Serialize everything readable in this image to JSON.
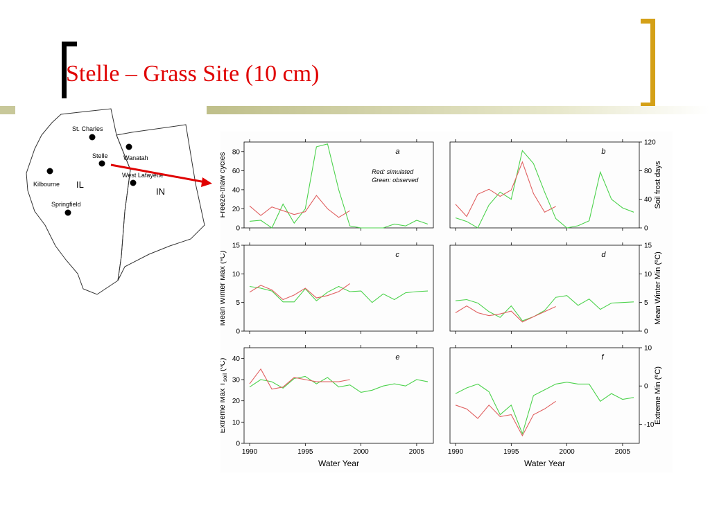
{
  "slide": {
    "title": "Stelle – Grass Site (10 cm)",
    "accent_color": "#d4a017",
    "title_color": "#e00000"
  },
  "map": {
    "sites": [
      "St. Charles",
      "Stelle",
      "Wanatah",
      "West Lafayette",
      "Kilbourne",
      "Springfield"
    ],
    "state_labels": [
      "IL",
      "IN"
    ],
    "arrow_color": "#e00000"
  },
  "chart_data": [
    {
      "panel": "a",
      "type": "line",
      "ylabel": "Freeze-thaw cycles",
      "ylim": [
        0,
        90
      ],
      "yticks": [
        0,
        20,
        40,
        60,
        80
      ],
      "xlim": [
        1989.5,
        2006.5
      ],
      "annotation": [
        "Red: simulated",
        "Green: observed"
      ],
      "series": [
        {
          "name": "simulated",
          "color": "#e06060",
          "x": [
            1990,
            1991,
            1992,
            1993,
            1994,
            1995,
            1996,
            1997,
            1998,
            1999
          ],
          "y": [
            23,
            13,
            22,
            18,
            14,
            17,
            34,
            20,
            11,
            18
          ]
        },
        {
          "name": "observed",
          "color": "#4cd24c",
          "x": [
            1990,
            1991,
            1992,
            1993,
            1994,
            1995,
            1996,
            1997,
            1998,
            1999,
            2000,
            2001,
            2002,
            2003,
            2004,
            2005,
            2006
          ],
          "y": [
            7,
            8,
            0,
            25,
            5,
            20,
            85,
            88,
            40,
            2,
            0,
            0,
            0,
            4,
            2,
            8,
            4
          ]
        }
      ]
    },
    {
      "panel": "b",
      "type": "line",
      "ylabel": "Soil frost days",
      "ylim": [
        0,
        120
      ],
      "yticks": [
        0,
        40,
        80,
        120
      ],
      "xlim": [
        1989.5,
        2006.5
      ],
      "series": [
        {
          "name": "simulated",
          "color": "#e06060",
          "x": [
            1990,
            1991,
            1992,
            1993,
            1994,
            1995,
            1996,
            1997,
            1998,
            1999
          ],
          "y": [
            33,
            16,
            47,
            54,
            44,
            53,
            92,
            48,
            22,
            30
          ]
        },
        {
          "name": "observed",
          "color": "#4cd24c",
          "x": [
            1990,
            1991,
            1992,
            1993,
            1994,
            1995,
            1996,
            1997,
            1998,
            1999,
            2000,
            2001,
            2002,
            2003,
            2004,
            2005,
            2006
          ],
          "y": [
            14,
            9,
            0,
            32,
            50,
            40,
            108,
            90,
            50,
            13,
            0,
            3,
            10,
            78,
            40,
            28,
            22
          ]
        }
      ]
    },
    {
      "panel": "c",
      "type": "line",
      "ylabel": "Mean Winter Max (ºC)",
      "ylim": [
        0,
        15
      ],
      "yticks": [
        0,
        5,
        10,
        15
      ],
      "xlim": [
        1989.5,
        2006.5
      ],
      "series": [
        {
          "name": "simulated",
          "color": "#e06060",
          "x": [
            1990,
            1991,
            1992,
            1993,
            1994,
            1995,
            1996,
            1997,
            1998,
            1999
          ],
          "y": [
            6.8,
            8.0,
            7.2,
            5.5,
            6.3,
            7.5,
            5.8,
            6.2,
            6.9,
            8.3
          ]
        },
        {
          "name": "observed",
          "color": "#4cd24c",
          "x": [
            1990,
            1991,
            1992,
            1993,
            1994,
            1995,
            1996,
            1997,
            1998,
            1999,
            2000,
            2001,
            2002,
            2003,
            2004,
            2005,
            2006
          ],
          "y": [
            7.8,
            7.5,
            7.0,
            5.1,
            5.1,
            7.4,
            5.3,
            6.8,
            7.8,
            6.9,
            7.0,
            5.0,
            6.5,
            5.5,
            6.7,
            6.9,
            7.0
          ]
        }
      ]
    },
    {
      "panel": "d",
      "type": "line",
      "ylabel": "Mean Winter Min (ºC)",
      "ylim": [
        0,
        15
      ],
      "yticks": [
        0,
        5,
        10,
        15
      ],
      "xlim": [
        1989.5,
        2006.5
      ],
      "series": [
        {
          "name": "simulated",
          "color": "#e06060",
          "x": [
            1990,
            1991,
            1992,
            1993,
            1994,
            1995,
            1996,
            1997,
            1998,
            1999
          ],
          "y": [
            3.2,
            4.4,
            3.2,
            2.7,
            3.0,
            3.5,
            1.6,
            2.5,
            3.4,
            4.3
          ]
        },
        {
          "name": "observed",
          "color": "#4cd24c",
          "x": [
            1990,
            1991,
            1992,
            1993,
            1994,
            1995,
            1996,
            1997,
            1998,
            1999,
            2000,
            2001,
            2002,
            2003,
            2004,
            2005,
            2006
          ],
          "y": [
            5.3,
            5.5,
            4.9,
            3.4,
            2.4,
            4.4,
            1.8,
            2.5,
            3.6,
            5.9,
            6.2,
            4.5,
            5.6,
            3.8,
            4.9,
            5.0,
            5.1
          ]
        }
      ]
    },
    {
      "panel": "e",
      "type": "line",
      "ylabel": "Extreme Max T",
      "ylabel_sub": "soil",
      "ylabel_unit": " (ºC)",
      "ylim": [
        0,
        45
      ],
      "yticks": [
        0,
        10,
        20,
        30,
        40
      ],
      "xlim": [
        1989.5,
        2006.5
      ],
      "xticks": [
        1990,
        1995,
        2000,
        2005
      ],
      "xlabel": "Water Year",
      "series": [
        {
          "name": "simulated",
          "color": "#e06060",
          "x": [
            1990,
            1991,
            1992,
            1993,
            1994,
            1995,
            1996,
            1997,
            1998,
            1999
          ],
          "y": [
            28,
            35,
            25.5,
            26.5,
            31,
            30,
            29,
            29,
            29,
            30
          ]
        },
        {
          "name": "observed",
          "color": "#4cd24c",
          "x": [
            1990,
            1991,
            1992,
            1993,
            1994,
            1995,
            1996,
            1997,
            1998,
            1999,
            2000,
            2001,
            2002,
            2003,
            2004,
            2005,
            2006
          ],
          "y": [
            26.5,
            30,
            29,
            26,
            30.5,
            31.5,
            28,
            31,
            26.5,
            27.5,
            24,
            25,
            27,
            28,
            27,
            30,
            29
          ]
        }
      ]
    },
    {
      "panel": "f",
      "type": "line",
      "ylabel": "Extreme Min (ºC)",
      "ylim": [
        -15,
        10
      ],
      "yticks": [
        -10,
        0,
        10
      ],
      "xlim": [
        1989.5,
        2006.5
      ],
      "xticks": [
        1990,
        1995,
        2000,
        2005
      ],
      "xlabel": "Water Year",
      "series": [
        {
          "name": "simulated",
          "color": "#e06060",
          "x": [
            1990,
            1991,
            1992,
            1993,
            1994,
            1995,
            1996,
            1997,
            1998,
            1999
          ],
          "y": [
            -5,
            -6,
            -8.5,
            -5,
            -8,
            -7.5,
            -13,
            -7.5,
            -6,
            -4
          ]
        },
        {
          "name": "observed",
          "color": "#4cd24c",
          "x": [
            1990,
            1991,
            1992,
            1993,
            1994,
            1995,
            1996,
            1997,
            1998,
            1999,
            2000,
            2001,
            2002,
            2003,
            2004,
            2005,
            2006
          ],
          "y": [
            -2,
            -0.5,
            0.5,
            -1.5,
            -7.5,
            -5,
            -12.5,
            -2.5,
            -1,
            0.5,
            1,
            0.5,
            0.5,
            -4,
            -2,
            -3.5,
            -3
          ]
        }
      ]
    }
  ]
}
